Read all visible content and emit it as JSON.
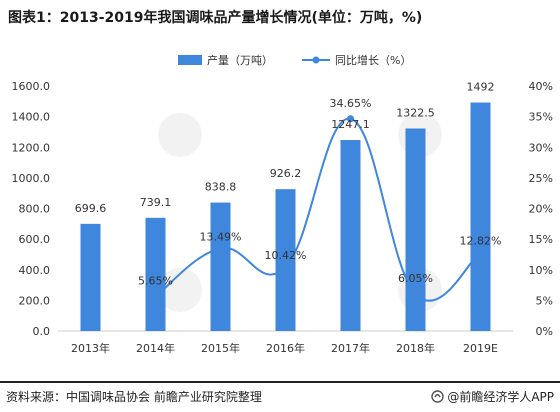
{
  "title": "图表1：2013-2019年我国调味品产量增长情况(单位：万吨，%)",
  "footer": {
    "source": "资料来源：中国调味品协会 前瞻产业研究院整理",
    "brand": "@前瞻经济学人APP"
  },
  "colors": {
    "bar": "#3f86dd",
    "line": "#3f86dd",
    "axis": "#cccccc"
  },
  "chart_data": {
    "type": "bar",
    "categories": [
      "2013年",
      "2014年",
      "2015年",
      "2016年",
      "2017年",
      "2018年",
      "2019E"
    ],
    "series": [
      {
        "name": "产量（万吨）",
        "type": "bar",
        "axis": "left",
        "values": [
          699.6,
          739.1,
          838.8,
          926.2,
          1247.1,
          1322.5,
          1492
        ],
        "labels": [
          "699.6",
          "739.1",
          "838.8",
          "926.2",
          "1247.1",
          "1322.5",
          "1492"
        ]
      },
      {
        "name": "同比增长（%）",
        "type": "line",
        "axis": "right",
        "values": [
          null,
          5.65,
          13.49,
          10.42,
          34.65,
          6.05,
          12.82
        ],
        "labels": [
          "",
          "5.65%",
          "13.49%",
          "10.42%",
          "34.65%",
          "6.05%",
          "12.82%"
        ]
      }
    ],
    "y_left": {
      "min": 0,
      "max": 1600,
      "step": 200,
      "ticks": [
        "0.0",
        "200.0",
        "400.0",
        "600.0",
        "800.0",
        "1000.0",
        "1200.0",
        "1400.0",
        "1600.0"
      ]
    },
    "y_right": {
      "min": 0,
      "max": 40,
      "step": 5,
      "ticks": [
        "0%",
        "5%",
        "10%",
        "15%",
        "20%",
        "25%",
        "30%",
        "35%",
        "40%"
      ]
    },
    "legend": "top-center",
    "grid": false
  }
}
